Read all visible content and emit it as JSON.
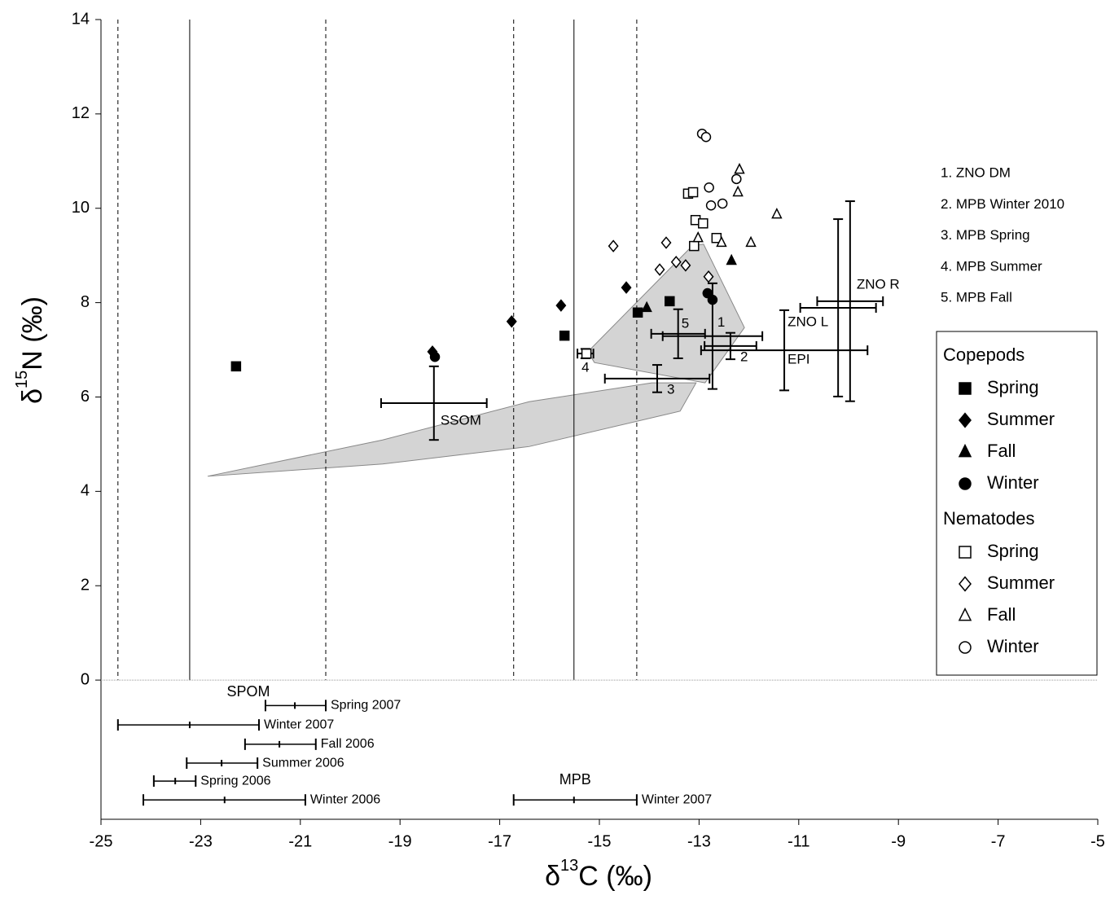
{
  "chart_data": {
    "type": "scatter",
    "x_label": {
      "main": "δ",
      "sup": "13",
      "rest": "C (‰)"
    },
    "y_label": {
      "main": "δ",
      "sup": "15",
      "rest": "N (‰)"
    },
    "xlim": [
      -25,
      -5
    ],
    "ylim": [
      -2.95,
      14
    ],
    "xticks": [
      -25,
      -23,
      -21,
      -19,
      -17,
      -15,
      -13,
      -11,
      -9,
      -7,
      -5
    ],
    "yticks": [
      0,
      2,
      4,
      6,
      8,
      10,
      12,
      14
    ],
    "vlines_solid": [
      -23.22,
      -15.51
    ],
    "vlines_dashed": [
      -24.66,
      -20.49,
      -16.72,
      -14.25
    ],
    "color": "#000000",
    "groups": [
      {
        "name": "Copepods",
        "series": [
          {
            "name": "Spring",
            "marker": "square",
            "fill": "filled",
            "x": [
              -22.29,
              -15.7,
              -14.23,
              -13.59
            ],
            "y": [
              6.65,
              7.3,
              7.79,
              8.03
            ]
          },
          {
            "name": "Summer",
            "marker": "diamond",
            "fill": "filled",
            "x": [
              -18.35,
              -16.76,
              -15.77,
              -14.46
            ],
            "y": [
              6.96,
              7.6,
              7.94,
              8.32
            ]
          },
          {
            "name": "Fall",
            "marker": "triangle",
            "fill": "filled",
            "x": [
              -14.05,
              -12.35
            ],
            "y": [
              7.89,
              8.89
            ]
          },
          {
            "name": "Winter",
            "marker": "circle",
            "fill": "filled",
            "x": [
              -18.3,
              -12.83,
              -12.73
            ],
            "y": [
              6.85,
              8.2,
              8.06
            ]
          }
        ]
      },
      {
        "name": "Nematodes",
        "series": [
          {
            "name": "Spring",
            "marker": "square",
            "fill": "open",
            "x": [
              -15.26,
              -13.22,
              -13.12,
              -13.07,
              -12.92,
              -13.1,
              -12.65
            ],
            "y": [
              6.92,
              10.31,
              10.34,
              9.75,
              9.68,
              9.2,
              9.37
            ]
          },
          {
            "name": "Summer",
            "marker": "diamond",
            "fill": "open",
            "x": [
              -14.72,
              -13.66,
              -13.79,
              -13.46,
              -13.27,
              -12.81
            ],
            "y": [
              9.2,
              9.27,
              8.7,
              8.86,
              8.79,
              8.55
            ]
          },
          {
            "name": "Fall",
            "marker": "triangle",
            "fill": "open",
            "x": [
              -13.02,
              -12.55,
              -12.19,
              -12.22,
              -11.96,
              -11.44
            ],
            "y": [
              9.37,
              9.27,
              10.82,
              10.34,
              9.27,
              9.87
            ]
          },
          {
            "name": "Winter",
            "marker": "circle",
            "fill": "open",
            "x": [
              -12.94,
              -12.86,
              -12.8,
              -12.76,
              -12.53,
              -12.25
            ],
            "y": [
              11.58,
              11.51,
              10.44,
              10.06,
              10.1,
              10.62
            ]
          }
        ]
      }
    ],
    "error_bars": [
      {
        "label": "SSOM",
        "x": -18.32,
        "y": 5.87,
        "xerr": 1.06,
        "yerr": 0.78
      },
      {
        "label": "1",
        "x": -12.73,
        "y": 7.29,
        "xerr": 1.0,
        "yerr": 1.12
      },
      {
        "label": "2",
        "x": -12.37,
        "y": 7.08,
        "xerr": 0.52,
        "yerr": 0.28
      },
      {
        "label": "3",
        "x": -13.84,
        "y": 6.39,
        "xerr": 1.05,
        "yerr": 0.29
      },
      {
        "label": "4",
        "x": -15.28,
        "y": 6.92,
        "xerr": 0.16,
        "yerr": 0.1
      },
      {
        "label": "5",
        "x": -13.42,
        "y": 7.34,
        "xerr": 0.54,
        "yerr": 0.52
      },
      {
        "label": "EPI",
        "x": -11.29,
        "y": 6.99,
        "xerr": 1.67,
        "yerr": 0.85
      },
      {
        "label": "ZNO L",
        "x": -10.21,
        "y": 7.89,
        "xerr": 0.76,
        "yerr": 1.88
      },
      {
        "label": "ZNO R",
        "x": -9.97,
        "y": 8.03,
        "xerr": 0.66,
        "yerr": 2.12
      }
    ],
    "numbered_notes": [
      "1. ZNO DM",
      "2. MPB Winter 2010",
      "3. MPB Spring",
      "4. MPB Summer",
      "5. MPB Fall"
    ],
    "regions": [
      {
        "x": [
          -15.23,
          -13.14,
          -12.91,
          -12.09,
          -12.88,
          -15.1
        ],
        "y": [
          6.96,
          9.2,
          9.24,
          7.47,
          6.3,
          6.73
        ]
      },
      {
        "x": [
          -22.86,
          -19.35,
          -16.41,
          -13.38,
          -13.06,
          -13.95,
          -16.41,
          -19.35
        ],
        "y": [
          4.32,
          4.58,
          4.95,
          5.7,
          6.3,
          6.3,
          5.9,
          5.09
        ]
      }
    ],
    "ranges": [
      {
        "name": "SPOM",
        "items": [
          {
            "label": "Spring 2007",
            "y": -0.54,
            "x": [
              -21.7,
              -21.11,
              -20.49
            ]
          },
          {
            "label": "Winter 2007",
            "y": -0.95,
            "x": [
              -24.66,
              -23.22,
              -21.83
            ]
          },
          {
            "label": "Fall 2006",
            "y": -1.36,
            "x": [
              -22.11,
              -21.42,
              -20.69
            ]
          },
          {
            "label": "Summer 2006",
            "y": -1.76,
            "x": [
              -23.28,
              -22.58,
              -21.86
            ]
          },
          {
            "label": "Spring 2006",
            "y": -2.14,
            "x": [
              -23.94,
              -23.51,
              -23.1
            ]
          },
          {
            "label": "Winter 2006",
            "y": -2.54,
            "x": [
              -24.15,
              -22.52,
              -20.9
            ]
          }
        ]
      },
      {
        "name": "MPB",
        "items": [
          {
            "label": "Winter 2007",
            "y": -2.54,
            "x": [
              -16.72,
              -15.51,
              -14.25
            ]
          }
        ]
      }
    ]
  }
}
